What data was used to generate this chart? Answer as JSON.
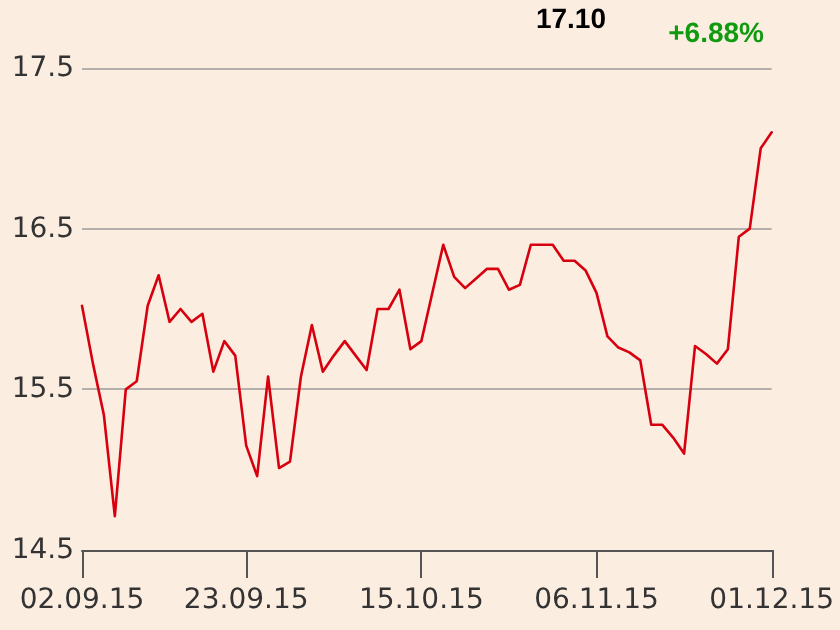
{
  "chart_data": {
    "type": "line",
    "annotations": [
      "17.10",
      "+6.88%"
    ],
    "categories": [
      "02.09.15",
      null,
      null,
      null,
      null,
      null,
      null,
      null,
      null,
      null,
      null,
      null,
      null,
      null,
      null,
      "23.09.15",
      null,
      null,
      null,
      null,
      null,
      null,
      null,
      null,
      null,
      null,
      null,
      null,
      null,
      null,
      null,
      "15.10.15",
      null,
      null,
      null,
      null,
      null,
      null,
      null,
      null,
      null,
      null,
      null,
      null,
      null,
      null,
      null,
      "06.11.15",
      null,
      null,
      null,
      null,
      null,
      null,
      null,
      null,
      null,
      null,
      null,
      null,
      null,
      null,
      null,
      "01.12.15"
    ],
    "series": [
      {
        "color": "#d7000f",
        "values": [
          16.02,
          15.66,
          15.34,
          14.71,
          15.5,
          15.55,
          16.02,
          16.21,
          15.92,
          16.0,
          15.92,
          15.97,
          15.61,
          15.8,
          15.71,
          15.15,
          14.96,
          15.58,
          15.01,
          15.05,
          15.58,
          15.9,
          15.61,
          15.71,
          15.8,
          15.71,
          15.62,
          16.0,
          16.0,
          16.12,
          15.75,
          15.8,
          16.1,
          16.4,
          16.2,
          16.13,
          16.19,
          16.25,
          16.25,
          16.12,
          16.15,
          16.4,
          16.4,
          16.4,
          16.3,
          16.3,
          16.24,
          16.1,
          15.83,
          15.76,
          15.73,
          15.68,
          15.28,
          15.28,
          15.2,
          15.1,
          15.77,
          15.72,
          15.66,
          15.75,
          16.45,
          16.5,
          17.0,
          17.1
        ]
      }
    ],
    "ylim": [
      14.5,
      17.5
    ],
    "yticks": [
      14.5,
      15.5,
      16.5,
      17.5
    ],
    "grid": "y",
    "marker": "none",
    "line_style": "solid"
  }
}
